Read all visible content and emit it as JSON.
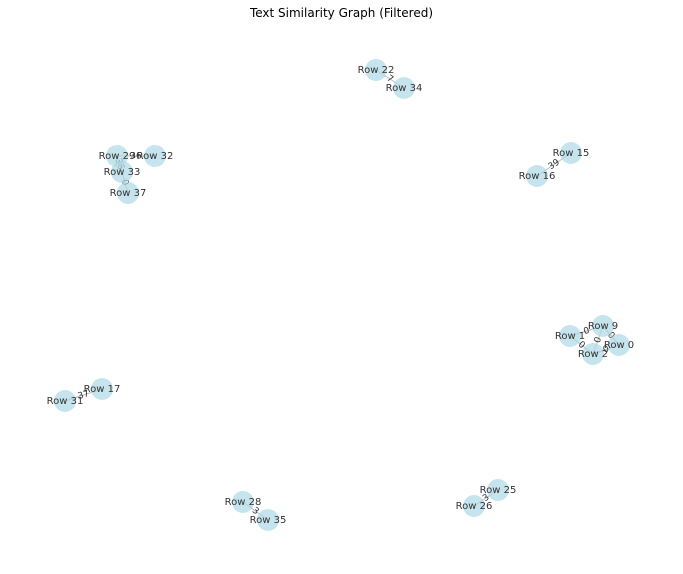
{
  "title": "Text Similarity Graph (Filtered)",
  "colors": {
    "node_fill": "#add8e6",
    "edge": "#bbbbbb",
    "text": "#333333"
  },
  "nodes": [
    {
      "id": "22",
      "label": "Row 22"
    },
    {
      "id": "34",
      "label": "Row 34"
    },
    {
      "id": "29",
      "label": "Row 29"
    },
    {
      "id": "32",
      "label": "Row 32"
    },
    {
      "id": "33",
      "label": "Row 33"
    },
    {
      "id": "37",
      "label": "Row 37"
    },
    {
      "id": "15",
      "label": "Row 15"
    },
    {
      "id": "16",
      "label": "Row 16"
    },
    {
      "id": "9",
      "label": "Row 9"
    },
    {
      "id": "1",
      "label": "Row 1"
    },
    {
      "id": "0",
      "label": "Row 0"
    },
    {
      "id": "2",
      "label": "Row 2"
    },
    {
      "id": "17",
      "label": "Row 17"
    },
    {
      "id": "31",
      "label": "Row 31"
    },
    {
      "id": "28",
      "label": "Row 28"
    },
    {
      "id": "35",
      "label": "Row 35"
    },
    {
      "id": "25",
      "label": "Row 25"
    },
    {
      "id": "26",
      "label": "Row 26"
    }
  ],
  "edges": [
    {
      "source": "22",
      "target": "34",
      "label": "7"
    },
    {
      "source": "29",
      "target": "32",
      "label": "36"
    },
    {
      "source": "29",
      "target": "33",
      "label": "36"
    },
    {
      "source": "33",
      "target": "37",
      "label": "0"
    },
    {
      "source": "15",
      "target": "16",
      "label": "39"
    },
    {
      "source": "9",
      "target": "1",
      "label": "0"
    },
    {
      "source": "9",
      "target": "0",
      "label": "0"
    },
    {
      "source": "9",
      "target": "2",
      "label": "0"
    },
    {
      "source": "1",
      "target": "2",
      "label": "0"
    },
    {
      "source": "0",
      "target": "2",
      "label": "0"
    },
    {
      "source": "17",
      "target": "31",
      "label": "37"
    },
    {
      "source": "28",
      "target": "35",
      "label": "3"
    },
    {
      "source": "25",
      "target": "26",
      "label": "3"
    }
  ]
}
